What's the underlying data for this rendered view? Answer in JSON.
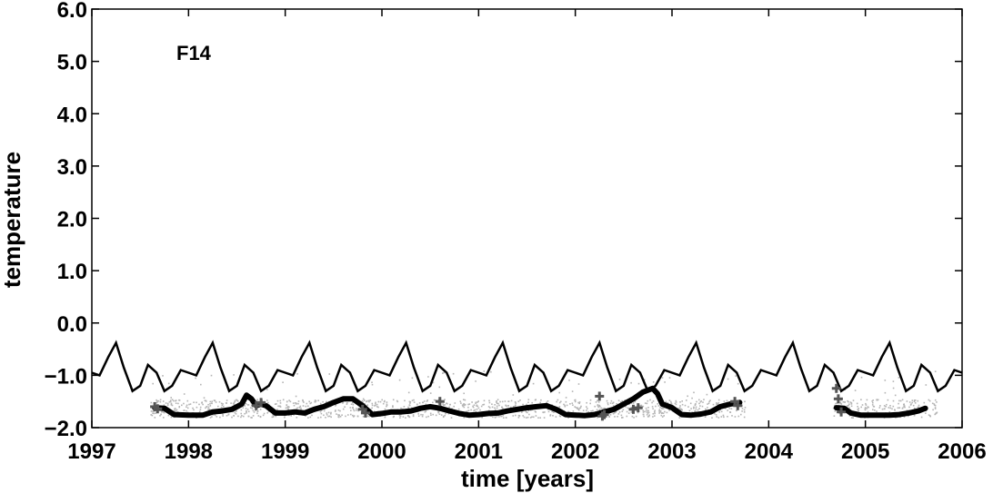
{
  "chart_data": {
    "type": "line",
    "title": "",
    "annotation": "F14",
    "xlabel": "time [years]",
    "ylabel": "temperature",
    "xlim": [
      1997,
      2006
    ],
    "ylim": [
      -2.0,
      6.0
    ],
    "x_ticks": [
      1997,
      1998,
      1999,
      2000,
      2001,
      2002,
      2003,
      2004,
      2005,
      2006
    ],
    "y_ticks": [
      -2.0,
      -1.0,
      0.0,
      1.0,
      2.0,
      3.0,
      4.0,
      5.0,
      6.0
    ],
    "x_tick_labels": [
      "1997",
      "1998",
      "1999",
      "2000",
      "2001",
      "2002",
      "2003",
      "2004",
      "2005",
      "2006"
    ],
    "y_tick_labels": [
      "−2.0",
      "−1.0",
      "0.0",
      "1.0",
      "2.0",
      "3.0",
      "4.0",
      "5.0",
      "6.0"
    ],
    "grid": false,
    "legend": "none",
    "colors": {
      "climatology": "#000000",
      "mean": "#000000",
      "observations": "#b4b4b4",
      "crosses": "#555555"
    },
    "series": [
      {
        "style": "thin-line",
        "x": [
          1997.0,
          1997.08,
          1997.17,
          1997.25,
          1997.33,
          1997.42,
          1997.5,
          1997.58,
          1997.67,
          1997.75,
          1997.83,
          1997.92,
          1998.0,
          1998.08,
          1998.17,
          1998.25,
          1998.33,
          1998.42,
          1998.5,
          1998.58,
          1998.67,
          1998.75,
          1998.83,
          1998.92,
          1999.0,
          1999.08,
          1999.17,
          1999.25,
          1999.33,
          1999.42,
          1999.5,
          1999.58,
          1999.67,
          1999.75,
          1999.83,
          1999.92,
          2000.0,
          2000.08,
          2000.17,
          2000.25,
          2000.33,
          2000.42,
          2000.5,
          2000.58,
          2000.67,
          2000.75,
          2000.83,
          2000.92,
          2001.0,
          2001.08,
          2001.17,
          2001.25,
          2001.33,
          2001.42,
          2001.5,
          2001.58,
          2001.67,
          2001.75,
          2001.83,
          2001.92,
          2002.0,
          2002.08,
          2002.17,
          2002.25,
          2002.33,
          2002.42,
          2002.5,
          2002.58,
          2002.67,
          2002.75,
          2002.83,
          2002.92,
          2003.0,
          2003.08,
          2003.17,
          2003.25,
          2003.33,
          2003.42,
          2003.5,
          2003.58,
          2003.67,
          2003.75,
          2003.83,
          2003.92,
          2004.0,
          2004.08,
          2004.17,
          2004.25,
          2004.33,
          2004.42,
          2004.5,
          2004.58,
          2004.67,
          2004.75,
          2004.83,
          2004.92,
          2005.0,
          2005.08,
          2005.17,
          2005.25,
          2005.33,
          2005.42,
          2005.5,
          2005.58,
          2005.67,
          2005.75,
          2005.83,
          2005.92,
          2006.0
        ],
        "y": [
          -0.95,
          -1.0,
          -0.65,
          -0.38,
          -0.85,
          -1.3,
          -1.2,
          -0.8,
          -0.95,
          -1.3,
          -1.2,
          -0.9,
          -0.95,
          -1.0,
          -0.65,
          -0.38,
          -0.85,
          -1.3,
          -1.2,
          -0.8,
          -0.95,
          -1.3,
          -1.2,
          -0.9,
          -0.95,
          -1.0,
          -0.65,
          -0.38,
          -0.85,
          -1.3,
          -1.2,
          -0.8,
          -0.95,
          -1.3,
          -1.2,
          -0.9,
          -0.95,
          -1.0,
          -0.65,
          -0.38,
          -0.85,
          -1.3,
          -1.2,
          -0.8,
          -0.95,
          -1.3,
          -1.2,
          -0.9,
          -0.95,
          -1.0,
          -0.65,
          -0.38,
          -0.85,
          -1.3,
          -1.2,
          -0.8,
          -0.95,
          -1.3,
          -1.2,
          -0.9,
          -0.95,
          -1.0,
          -0.65,
          -0.38,
          -0.85,
          -1.3,
          -1.2,
          -0.8,
          -0.95,
          -1.3,
          -1.2,
          -0.9,
          -0.95,
          -1.0,
          -0.65,
          -0.38,
          -0.85,
          -1.3,
          -1.2,
          -0.8,
          -0.95,
          -1.3,
          -1.2,
          -0.9,
          -0.95,
          -1.0,
          -0.65,
          -0.38,
          -0.85,
          -1.3,
          -1.2,
          -0.8,
          -0.95,
          -1.3,
          -1.2,
          -0.9,
          -0.95,
          -1.0,
          -0.65,
          -0.38,
          -0.85,
          -1.3,
          -1.2,
          -0.8,
          -0.95,
          -1.3,
          -1.2,
          -0.9,
          -0.95
        ]
      },
      {
        "style": "thick-line",
        "segments": [
          {
            "x": [
              1997.65,
              1997.75,
              1997.85,
              1998.0,
              1998.15,
              1998.25,
              1998.35,
              1998.45,
              1998.55,
              1998.6,
              1998.65,
              1998.7,
              1998.75,
              1998.8,
              1998.9,
              1999.0,
              1999.1,
              1999.2,
              1999.3,
              1999.4,
              1999.5,
              1999.6,
              1999.7,
              1999.8,
              1999.9,
              2000.0,
              2000.1,
              2000.2,
              2000.3,
              2000.4,
              2000.5,
              2000.6,
              2000.7,
              2000.8,
              2000.9,
              2001.0,
              2001.1,
              2001.2,
              2001.3,
              2001.4,
              2001.5,
              2001.6,
              2001.7,
              2001.8,
              2001.9,
              2002.0,
              2002.1,
              2002.2,
              2002.3,
              2002.4,
              2002.5,
              2002.6,
              2002.7,
              2002.8,
              2002.85,
              2002.9,
              2003.0,
              2003.1,
              2003.2,
              2003.3,
              2003.4,
              2003.5,
              2003.6,
              2003.7
            ],
            "y": [
              -1.62,
              -1.63,
              -1.75,
              -1.76,
              -1.76,
              -1.7,
              -1.68,
              -1.65,
              -1.55,
              -1.38,
              -1.45,
              -1.58,
              -1.55,
              -1.58,
              -1.72,
              -1.72,
              -1.7,
              -1.72,
              -1.65,
              -1.6,
              -1.52,
              -1.45,
              -1.45,
              -1.58,
              -1.75,
              -1.73,
              -1.7,
              -1.7,
              -1.68,
              -1.63,
              -1.6,
              -1.63,
              -1.68,
              -1.73,
              -1.76,
              -1.75,
              -1.73,
              -1.72,
              -1.68,
              -1.65,
              -1.62,
              -1.6,
              -1.58,
              -1.65,
              -1.75,
              -1.76,
              -1.77,
              -1.75,
              -1.7,
              -1.65,
              -1.55,
              -1.45,
              -1.32,
              -1.25,
              -1.35,
              -1.55,
              -1.62,
              -1.75,
              -1.76,
              -1.74,
              -1.7,
              -1.6,
              -1.55,
              -1.52
            ]
          },
          {
            "x": [
              2004.7,
              2004.78,
              2004.85,
              2004.95,
              2005.1,
              2005.25,
              2005.35,
              2005.45,
              2005.55,
              2005.62
            ],
            "y": [
              -1.62,
              -1.63,
              -1.72,
              -1.76,
              -1.76,
              -1.76,
              -1.75,
              -1.72,
              -1.68,
              -1.63
            ]
          }
        ]
      },
      {
        "style": "cross-markers",
        "x": [
          1997.65,
          1997.68,
          1998.7,
          1998.75,
          1999.8,
          1999.83,
          2000.6,
          2002.25,
          2002.28,
          2002.3,
          2002.6,
          2002.65,
          2003.65,
          2003.68,
          2004.7,
          2004.72,
          2004.75
        ],
        "y": [
          -1.6,
          -1.64,
          -1.58,
          -1.52,
          -1.65,
          -1.72,
          -1.5,
          -1.4,
          -1.78,
          -1.75,
          -1.65,
          -1.62,
          -1.5,
          -1.58,
          -1.25,
          -1.45,
          -1.7
        ]
      },
      {
        "style": "scatter-dots",
        "x_range": [
          1997.6,
          2005.75
        ],
        "y_range": [
          -1.8,
          -0.55
        ],
        "gaps": [
          [
            2003.75,
            2004.65
          ]
        ]
      }
    ]
  }
}
